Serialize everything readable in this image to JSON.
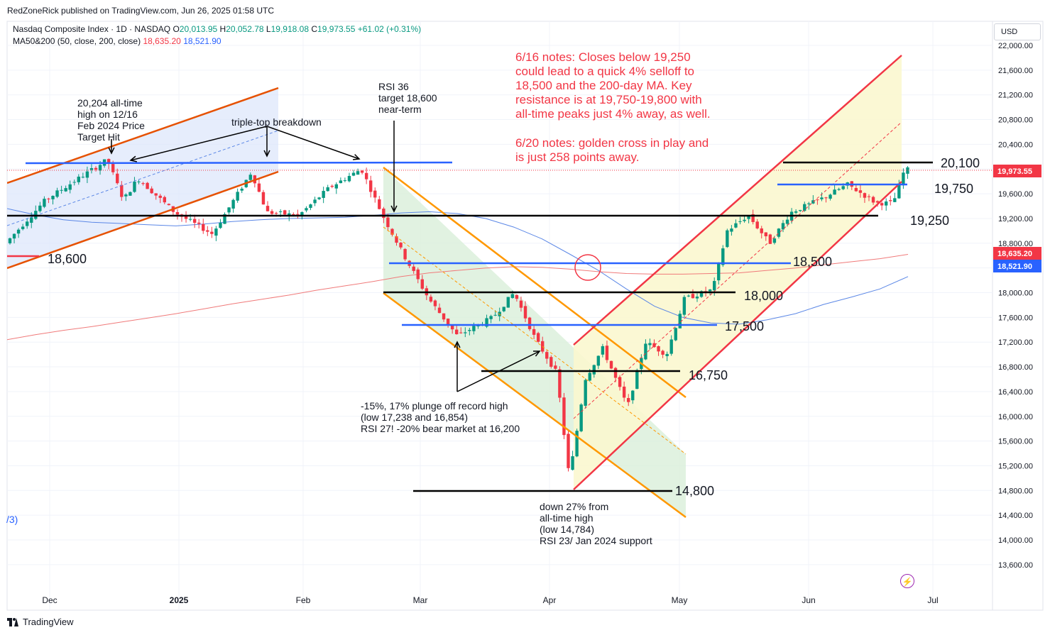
{
  "header": {
    "publisher": "RedZoneRick published on TradingView.com, Jun 26, 2025 01:58 UTC",
    "symbol": "Nasdaq Composite Index · 1D · NASDAQ",
    "ohlc": {
      "o_label": "O",
      "o": "20,013.95",
      "h_label": "H",
      "h": "20,052.78",
      "l_label": "L",
      "l": "19,918.08",
      "c_label": "C",
      "c": "19,973.55",
      "change": "+61.02 (+0.31%)"
    },
    "ma_label": "MA50&200 (50, close, 200, close)",
    "ma50": "18,635.20",
    "ma200": "18,521.90"
  },
  "currency": "USD",
  "footer": {
    "brand": "TradingView"
  },
  "left_fragment": "/3)",
  "colors": {
    "up": "#089981",
    "down": "#f23645",
    "ma50": "#5b87e6",
    "ma200": "#f07a7a",
    "annotation": "#f23645",
    "support_line": "#000000",
    "blue_line": "#2962ff",
    "orange_channel": "#ff9800",
    "red_channel": "#f23645",
    "dark_orange_channel": "#e65100"
  },
  "chart_data": {
    "type": "candlestick",
    "y_axis": {
      "ticks": [
        "22,000.00",
        "21,600.00",
        "21,200.00",
        "20,800.00",
        "20,400.00",
        "20,000.00",
        "19,600.00",
        "19,200.00",
        "18,800.00",
        "18,400.00",
        "18,000.00",
        "17,600.00",
        "17,200.00",
        "16,800.00",
        "16,400.00",
        "16,000.00",
        "15,600.00",
        "15,200.00",
        "14,800.00",
        "14,400.00",
        "14,000.00",
        "13,600.00"
      ],
      "range": [
        13400,
        22150
      ]
    },
    "x_axis": {
      "ticks": [
        "Dec",
        "2025",
        "Feb",
        "Mar",
        "Apr",
        "May",
        "Jun",
        "Jul"
      ]
    },
    "price_badges": [
      {
        "label": "19,973.55",
        "value": 19973.55,
        "color": "#f23645"
      },
      {
        "label": "18,635.20",
        "value": 18635.2,
        "color": "#f23645"
      },
      {
        "label": "18,521.90",
        "value": 18521.9,
        "color": "#2962ff"
      }
    ],
    "horizontal_levels": [
      {
        "label": "20,100",
        "value": 20100,
        "color": "#000000"
      },
      {
        "label": "19,750",
        "value": 19750,
        "color": "#2962ff"
      },
      {
        "label": "19,250",
        "value": 19250,
        "color": "#000000"
      },
      {
        "label": "18,500",
        "value": 18500,
        "color": "#2962ff"
      },
      {
        "label": "18,000",
        "value": 18000,
        "color": "#000000"
      },
      {
        "label": "17,500",
        "value": 17500,
        "color": "#2962ff"
      },
      {
        "label": "16,750",
        "value": 16750,
        "color": "#000000"
      },
      {
        "label": "14,800",
        "value": 14800,
        "color": "#000000"
      },
      {
        "label": "18,600",
        "value": 18600,
        "color": "#000000"
      }
    ],
    "annotations": {
      "notes_1": [
        "6/16 notes: Closes below 19,250",
        "could lead to a quick 4% selloff to",
        "18,500 and the 200-day MA. Key",
        "resistance is at 19,750-19,800 with",
        "all-time peaks just 4% away, as well."
      ],
      "notes_2": [
        "6/20 notes: golden cross in play and",
        "is just 258 points away."
      ],
      "ath": [
        "20,204 all-time",
        "high on 12/16",
        "Feb 2024 Price",
        "Target Hit"
      ],
      "triple_top": "triple-top breakdown",
      "rsi36": [
        "RSI 36",
        "target 18,600",
        "near-term"
      ],
      "plunge": [
        "-15%, 17% plunge off record high",
        "(low 17,238 and 16,854)",
        "RSI 27! -20% bear market at 16,200"
      ],
      "down27": [
        "down 27% from",
        "all-time high",
        "(low 14,784)",
        "RSI 23/ Jan 2024 support"
      ]
    },
    "series": [
      {
        "name": "MA50",
        "values": [
          19360,
          19260,
          19180,
          19140,
          19120,
          19100,
          19080,
          19110,
          19150,
          19180,
          19200,
          19210,
          19220,
          19250,
          19290,
          19310,
          19280,
          19200,
          19060,
          18870,
          18620,
          18360,
          18060,
          17780,
          17600,
          17510,
          17490,
          17560,
          17660,
          17810,
          17930,
          18060,
          18260
        ]
      },
      {
        "name": "MA200",
        "values": [
          17240,
          17320,
          17390,
          17450,
          17520,
          17590,
          17660,
          17740,
          17820,
          17890,
          17960,
          18040,
          18110,
          18180,
          18260,
          18320,
          18360,
          18400,
          18420,
          18410,
          18380,
          18340,
          18310,
          18300,
          18300,
          18310,
          18320,
          18360,
          18400,
          18450,
          18500,
          18550,
          18620
        ]
      }
    ]
  }
}
